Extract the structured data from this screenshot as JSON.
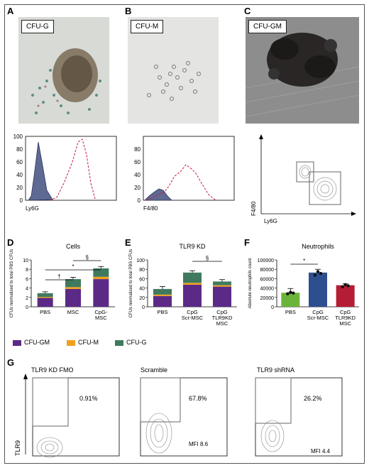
{
  "panels": {
    "A": {
      "letter": "A",
      "tag": "CFU-G",
      "xlabel": "Ly6G",
      "yticks": [
        "0",
        "20",
        "40",
        "60",
        "80",
        "100"
      ]
    },
    "B": {
      "letter": "B",
      "tag": "CFU-M",
      "xlabel": "F4/80",
      "yticks": [
        "0",
        "20",
        "40",
        "60",
        "80"
      ]
    },
    "C": {
      "letter": "C",
      "tag": "CFU-GM",
      "xlabel": "Ly6G",
      "ylabel": "F4/80"
    },
    "D": {
      "letter": "D"
    },
    "E": {
      "letter": "E"
    },
    "F": {
      "letter": "F"
    },
    "G": {
      "letter": "G",
      "ylabel": "TLR9",
      "plots": [
        {
          "title": "TLR9 KD FMO",
          "pct": "0.91%",
          "mfi": ""
        },
        {
          "title": "Scramble",
          "pct": "67.8%",
          "mfi": "MFI 8.6"
        },
        {
          "title": "TLR9 shRNA",
          "pct": "26.2%",
          "mfi": "MFI 4.4"
        }
      ]
    }
  },
  "legend": {
    "items": [
      {
        "label": "CFU-GM",
        "color": "#5b2a86"
      },
      {
        "label": "CFU-M",
        "color": "#f0a01c"
      },
      {
        "label": "CFU-G",
        "color": "#3f7a5e"
      }
    ]
  },
  "chart_data": [
    {
      "type": "bar",
      "title": "Cells",
      "ylabel": "CFUs normalized to total PBS CFUs",
      "categories": [
        "PBS",
        "MSC",
        "CpG-\nMSC"
      ],
      "ylim": [
        0,
        10
      ],
      "yticks": [
        0,
        2,
        4,
        6,
        8,
        10
      ],
      "series": [
        {
          "name": "CFU-GM",
          "values": [
            1.9,
            3.8,
            5.9
          ]
        },
        {
          "name": "CFU-M",
          "values": [
            0.2,
            0.4,
            0.5
          ]
        },
        {
          "name": "CFU-G",
          "values": [
            0.8,
            1.7,
            1.8
          ]
        }
      ],
      "errors": [
        0.3,
        0.4,
        0.4
      ],
      "annotations": [
        "†",
        "*",
        "§"
      ]
    },
    {
      "type": "bar",
      "title": "TLR9 KD",
      "ylabel": "CFUs normalized to total PBS CFUs",
      "categories": [
        "PBS",
        "CpG\nScr-MSC",
        "CpG\nTLR9KD\nMSC"
      ],
      "ylim": [
        0,
        100
      ],
      "yticks": [
        0,
        20,
        40,
        60,
        80,
        100
      ],
      "series": [
        {
          "name": "CFU-GM",
          "values": [
            23,
            47,
            43
          ]
        },
        {
          "name": "CFU-M",
          "values": [
            3,
            4,
            3
          ]
        },
        {
          "name": "CFU-G",
          "values": [
            12,
            22,
            8
          ]
        }
      ],
      "errors": [
        5,
        4,
        4
      ],
      "annotations": [
        "§"
      ]
    },
    {
      "type": "bar",
      "title": "Neutrophils",
      "ylabel": "Absolute neutrophils count",
      "categories": [
        "PBS",
        "CpG\nScr-MSC",
        "CpG\nTLR9KD\nMSC"
      ],
      "ylim": [
        0,
        100000
      ],
      "yticks": [
        "0",
        "20000",
        "40000",
        "60000",
        "80000",
        "100000"
      ],
      "values": [
        30000,
        73000,
        46000
      ],
      "errors": [
        9000,
        7000,
        3000
      ],
      "colors": [
        "#6bb43a",
        "#2e4f8f",
        "#b51d35"
      ],
      "annotations": [
        "*"
      ]
    }
  ]
}
